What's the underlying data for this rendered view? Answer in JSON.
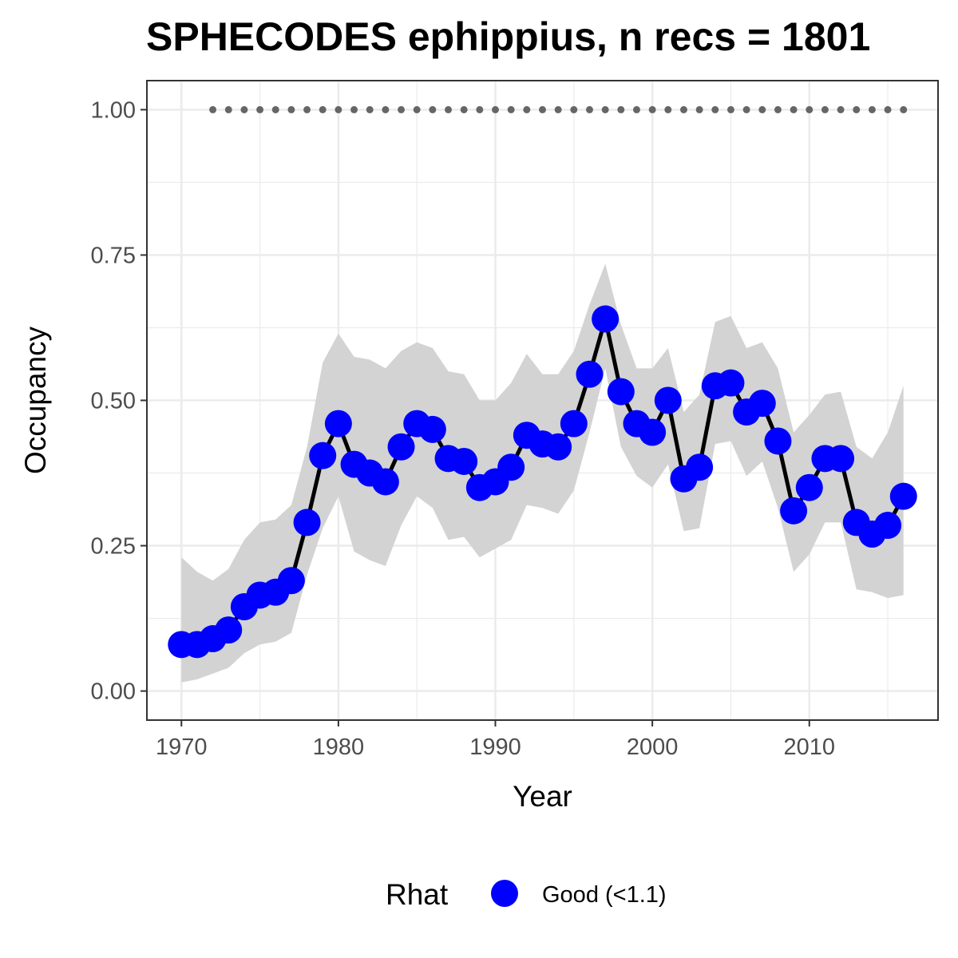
{
  "chart_data": {
    "type": "line",
    "title": "SPHECODES ephippius, n recs = 1801",
    "xlabel": "Year",
    "ylabel": "Occupancy",
    "xlim": [
      1967.8,
      2018.2
    ],
    "ylim": [
      -0.05,
      1.05
    ],
    "x_ticks": [
      1970,
      1980,
      1990,
      2000,
      2010
    ],
    "x_tick_labels": [
      "1970",
      "1980",
      "1990",
      "2000",
      "2010"
    ],
    "y_ticks": [
      0.0,
      0.25,
      0.5,
      0.75,
      1.0
    ],
    "y_tick_labels": [
      "0.00",
      "0.25",
      "0.50",
      "0.75",
      "1.00"
    ],
    "grid": true,
    "legend": {
      "position": "bottom",
      "title": "Rhat",
      "entries": [
        {
          "label": "Good (<1.1)",
          "color": "#0000ff"
        }
      ]
    },
    "colors": {
      "points": "#0000ff",
      "line": "#000000",
      "ribbon": "#d3d3d3",
      "reference_points": "#666666"
    },
    "series": [
      {
        "x": [
          1970,
          1971,
          1972,
          1973,
          1974,
          1975,
          1976,
          1977,
          1978,
          1979,
          1980,
          1981,
          1982,
          1983,
          1984,
          1985,
          1986,
          1987,
          1988,
          1989,
          1990,
          1991,
          1992,
          1993,
          1994,
          1995,
          1996,
          1997,
          1998,
          1999,
          2000,
          2001,
          2002,
          2003,
          2004,
          2005,
          2006,
          2007,
          2008,
          2009,
          2010,
          2011,
          2012,
          2013,
          2014,
          2015,
          2016
        ],
        "y": [
          0.08,
          0.08,
          0.09,
          0.105,
          0.145,
          0.165,
          0.17,
          0.19,
          0.29,
          0.405,
          0.46,
          0.39,
          0.375,
          0.36,
          0.42,
          0.46,
          0.45,
          0.4,
          0.395,
          0.35,
          0.36,
          0.385,
          0.44,
          0.425,
          0.42,
          0.46,
          0.545,
          0.64,
          0.515,
          0.46,
          0.445,
          0.5,
          0.365,
          0.385,
          0.525,
          0.53,
          0.48,
          0.495,
          0.43,
          0.31,
          0.35,
          0.4,
          0.4,
          0.29,
          0.27,
          0.285,
          0.335
        ],
        "lower": [
          0.015,
          0.02,
          0.03,
          0.04,
          0.065,
          0.08,
          0.085,
          0.1,
          0.2,
          0.28,
          0.335,
          0.24,
          0.225,
          0.215,
          0.285,
          0.335,
          0.315,
          0.26,
          0.265,
          0.23,
          0.245,
          0.26,
          0.32,
          0.315,
          0.305,
          0.345,
          0.445,
          0.555,
          0.42,
          0.37,
          0.35,
          0.39,
          0.275,
          0.28,
          0.425,
          0.43,
          0.37,
          0.395,
          0.315,
          0.205,
          0.235,
          0.29,
          0.29,
          0.175,
          0.17,
          0.16,
          0.165
        ],
        "upper": [
          0.23,
          0.205,
          0.19,
          0.21,
          0.26,
          0.29,
          0.295,
          0.32,
          0.42,
          0.565,
          0.615,
          0.575,
          0.57,
          0.555,
          0.585,
          0.6,
          0.59,
          0.55,
          0.545,
          0.5,
          0.5,
          0.53,
          0.58,
          0.545,
          0.545,
          0.585,
          0.665,
          0.735,
          0.63,
          0.555,
          0.555,
          0.59,
          0.48,
          0.51,
          0.635,
          0.645,
          0.59,
          0.6,
          0.555,
          0.445,
          0.475,
          0.51,
          0.515,
          0.42,
          0.4,
          0.445,
          0.525
        ]
      },
      {
        "x": [
          1972,
          1973,
          1974,
          1975,
          1976,
          1977,
          1978,
          1979,
          1980,
          1981,
          1982,
          1983,
          1984,
          1985,
          1986,
          1987,
          1988,
          1989,
          1990,
          1991,
          1992,
          1993,
          1994,
          1995,
          1996,
          1997,
          1998,
          1999,
          2000,
          2001,
          2002,
          2003,
          2004,
          2005,
          2006,
          2007,
          2008,
          2009,
          2010,
          2011,
          2012,
          2013,
          2014,
          2015,
          2016
        ],
        "y": [
          1,
          1,
          1,
          1,
          1,
          1,
          1,
          1,
          1,
          1,
          1,
          1,
          1,
          1,
          1,
          1,
          1,
          1,
          1,
          1,
          1,
          1,
          1,
          1,
          1,
          1,
          1,
          1,
          1,
          1,
          1,
          1,
          1,
          1,
          1,
          1,
          1,
          1,
          1,
          1,
          1,
          1,
          1,
          1,
          1
        ]
      }
    ]
  }
}
